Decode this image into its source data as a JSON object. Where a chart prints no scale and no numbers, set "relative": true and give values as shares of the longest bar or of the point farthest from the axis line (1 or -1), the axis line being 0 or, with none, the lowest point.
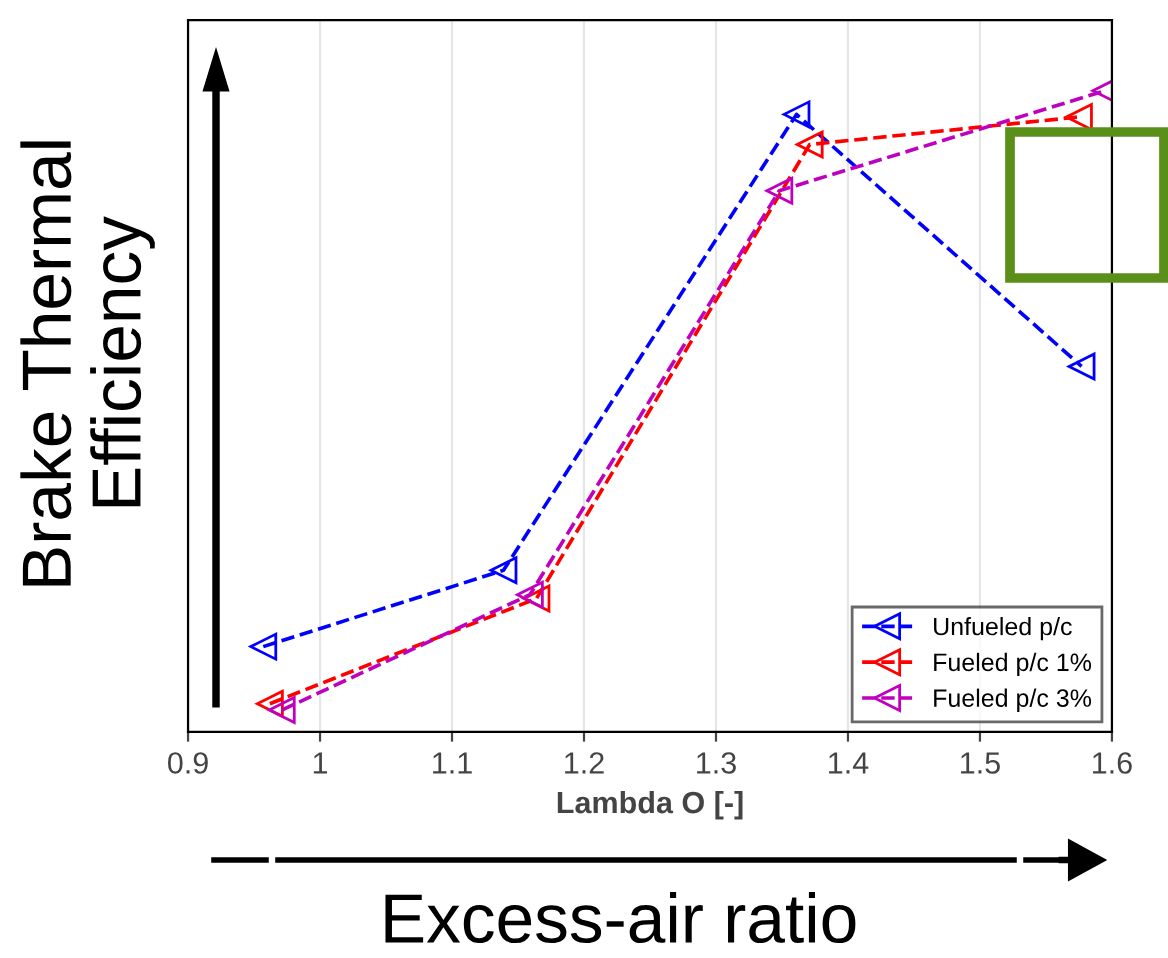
{
  "chart_data": {
    "type": "line",
    "xlabel": "Lambda O [-]",
    "ylabel": "Brake Thermal\nEfficiency",
    "annotations": [
      "Excess-air ratio"
    ],
    "relative": true,
    "xlim": [
      0.9,
      1.6
    ],
    "xticks": [
      0.9,
      1,
      1.1,
      1.2,
      1.3,
      1.4,
      1.5,
      1.6
    ],
    "grid": "x",
    "legend": "bottom right",
    "marker": "triangle",
    "line_style": "dashed",
    "series": [
      {
        "name": "Unfueled p/c",
        "color": "#0000ff",
        "x": [
          0.957,
          1.139,
          1.361,
          1.577
        ],
        "values": [
          0.133,
          0.252,
          0.963,
          0.57
        ]
      },
      {
        "name": "Fueled p/c 1%",
        "color": "#ff0000",
        "x": [
          0.962,
          1.164,
          1.371,
          1.575
        ],
        "values": [
          0.044,
          0.208,
          0.916,
          0.959
        ]
      },
      {
        "name": "Fueled p/c 3%",
        "color": "#bf00bf",
        "x": [
          0.971,
          1.159,
          1.348,
          1.595
        ],
        "values": [
          0.034,
          0.214,
          0.844,
          1.0
        ]
      }
    ]
  }
}
